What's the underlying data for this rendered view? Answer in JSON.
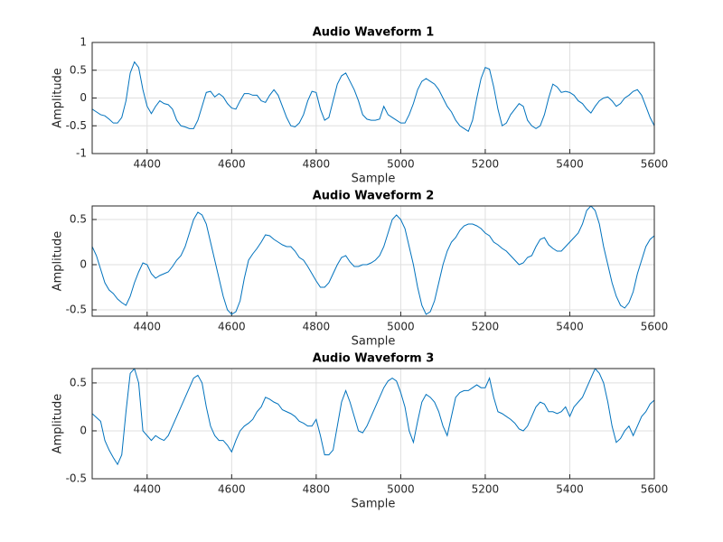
{
  "chart_data": [
    {
      "type": "line",
      "title": "Audio Waveform 1",
      "xlabel": "Sample",
      "ylabel": "Amplitude",
      "color": "#0072bd",
      "grid": true,
      "xlim": [
        4270,
        5600
      ],
      "ylim": [
        -1,
        1
      ],
      "xticks": [
        4400,
        4600,
        4800,
        5000,
        5200,
        5400,
        5600
      ],
      "yticks": [
        -1,
        -0.5,
        0,
        0.5,
        1
      ],
      "x": [
        4270,
        4280,
        4290,
        4300,
        4310,
        4320,
        4330,
        4340,
        4350,
        4360,
        4370,
        4380,
        4390,
        4400,
        4410,
        4420,
        4430,
        4440,
        4450,
        4460,
        4470,
        4480,
        4490,
        4500,
        4510,
        4520,
        4530,
        4540,
        4550,
        4560,
        4570,
        4580,
        4590,
        4600,
        4610,
        4620,
        4630,
        4640,
        4650,
        4660,
        4670,
        4680,
        4690,
        4700,
        4710,
        4720,
        4730,
        4740,
        4750,
        4760,
        4770,
        4780,
        4790,
        4800,
        4810,
        4820,
        4830,
        4840,
        4850,
        4860,
        4870,
        4880,
        4890,
        4900,
        4910,
        4920,
        4930,
        4940,
        4950,
        4960,
        4970,
        4980,
        4990,
        5000,
        5010,
        5020,
        5030,
        5040,
        5050,
        5060,
        5070,
        5080,
        5090,
        5100,
        5110,
        5120,
        5130,
        5140,
        5150,
        5160,
        5170,
        5180,
        5190,
        5200,
        5210,
        5220,
        5230,
        5240,
        5250,
        5260,
        5270,
        5280,
        5290,
        5300,
        5310,
        5320,
        5330,
        5340,
        5350,
        5360,
        5370,
        5380,
        5390,
        5400,
        5410,
        5420,
        5430,
        5440,
        5450,
        5460,
        5470,
        5480,
        5490,
        5500,
        5510,
        5520,
        5530,
        5540,
        5550,
        5560,
        5570,
        5580,
        5590,
        5600
      ],
      "values": [
        -0.2,
        -0.25,
        -0.3,
        -0.32,
        -0.38,
        -0.45,
        -0.45,
        -0.35,
        -0.05,
        0.45,
        0.65,
        0.55,
        0.15,
        -0.15,
        -0.28,
        -0.15,
        -0.05,
        -0.1,
        -0.12,
        -0.2,
        -0.4,
        -0.5,
        -0.52,
        -0.55,
        -0.55,
        -0.4,
        -0.15,
        0.1,
        0.12,
        0.02,
        0.08,
        0.02,
        -0.1,
        -0.18,
        -0.2,
        -0.05,
        0.08,
        0.08,
        0.05,
        0.05,
        -0.05,
        -0.08,
        0.05,
        0.15,
        0.05,
        -0.15,
        -0.35,
        -0.5,
        -0.52,
        -0.45,
        -0.3,
        -0.05,
        0.12,
        0.1,
        -0.2,
        -0.4,
        -0.35,
        -0.05,
        0.25,
        0.4,
        0.45,
        0.3,
        0.15,
        -0.05,
        -0.3,
        -0.38,
        -0.4,
        -0.4,
        -0.38,
        -0.15,
        -0.3,
        -0.35,
        -0.4,
        -0.45,
        -0.45,
        -0.3,
        -0.1,
        0.15,
        0.3,
        0.35,
        0.3,
        0.25,
        0.15,
        0,
        -0.15,
        -0.25,
        -0.4,
        -0.5,
        -0.55,
        -0.6,
        -0.4,
        0,
        0.35,
        0.55,
        0.52,
        0.2,
        -0.2,
        -0.5,
        -0.45,
        -0.3,
        -0.2,
        -0.1,
        -0.15,
        -0.4,
        -0.5,
        -0.55,
        -0.5,
        -0.3,
        0,
        0.25,
        0.2,
        0.1,
        0.12,
        0.1,
        0.05,
        -0.05,
        -0.1,
        -0.2,
        -0.27,
        -0.15,
        -0.05,
        0,
        0.02,
        -0.05,
        -0.15,
        -0.1,
        0,
        0.05,
        0.12,
        0.15,
        0.05,
        -0.15,
        -0.35,
        -0.5
      ]
    },
    {
      "type": "line",
      "title": "Audio Waveform 2",
      "xlabel": "Sample",
      "ylabel": "Amplitude",
      "color": "#0072bd",
      "grid": true,
      "xlim": [
        4270,
        5600
      ],
      "ylim": [
        -0.57,
        0.65
      ],
      "xticks": [
        4400,
        4600,
        4800,
        5000,
        5200,
        5400,
        5600
      ],
      "yticks": [
        -0.5,
        0,
        0.5
      ],
      "x": [
        4270,
        4280,
        4290,
        4300,
        4310,
        4320,
        4330,
        4340,
        4350,
        4360,
        4370,
        4380,
        4390,
        4400,
        4410,
        4420,
        4430,
        4440,
        4450,
        4460,
        4470,
        4480,
        4490,
        4500,
        4510,
        4520,
        4530,
        4540,
        4550,
        4560,
        4570,
        4580,
        4590,
        4600,
        4610,
        4620,
        4630,
        4640,
        4650,
        4660,
        4670,
        4680,
        4690,
        4700,
        4710,
        4720,
        4730,
        4740,
        4750,
        4760,
        4770,
        4780,
        4790,
        4800,
        4810,
        4820,
        4830,
        4840,
        4850,
        4860,
        4870,
        4880,
        4890,
        4900,
        4910,
        4920,
        4930,
        4940,
        4950,
        4960,
        4970,
        4980,
        4990,
        5000,
        5010,
        5020,
        5030,
        5040,
        5050,
        5060,
        5070,
        5080,
        5090,
        5100,
        5110,
        5120,
        5130,
        5140,
        5150,
        5160,
        5170,
        5180,
        5190,
        5200,
        5210,
        5220,
        5230,
        5240,
        5250,
        5260,
        5270,
        5280,
        5290,
        5300,
        5310,
        5320,
        5330,
        5340,
        5350,
        5360,
        5370,
        5380,
        5390,
        5400,
        5410,
        5420,
        5430,
        5440,
        5450,
        5460,
        5470,
        5480,
        5490,
        5500,
        5510,
        5520,
        5530,
        5540,
        5550,
        5560,
        5570,
        5580,
        5590,
        5600
      ],
      "values": [
        0.2,
        0.1,
        -0.05,
        -0.2,
        -0.28,
        -0.32,
        -0.38,
        -0.42,
        -0.45,
        -0.35,
        -0.2,
        -0.08,
        0.02,
        0,
        -0.1,
        -0.15,
        -0.12,
        -0.1,
        -0.08,
        -0.02,
        0.05,
        0.1,
        0.2,
        0.35,
        0.5,
        0.58,
        0.55,
        0.45,
        0.25,
        0.05,
        -0.15,
        -0.35,
        -0.5,
        -0.55,
        -0.52,
        -0.4,
        -0.15,
        0.05,
        0.12,
        0.18,
        0.25,
        0.33,
        0.32,
        0.28,
        0.25,
        0.22,
        0.2,
        0.2,
        0.15,
        0.08,
        0.05,
        -0.02,
        -0.1,
        -0.18,
        -0.25,
        -0.25,
        -0.2,
        -0.1,
        0,
        0.08,
        0.1,
        0.03,
        -0.02,
        -0.02,
        0,
        0,
        0.02,
        0.05,
        0.1,
        0.2,
        0.35,
        0.5,
        0.55,
        0.5,
        0.4,
        0.2,
        0,
        -0.25,
        -0.45,
        -0.55,
        -0.52,
        -0.4,
        -0.2,
        0,
        0.15,
        0.25,
        0.3,
        0.38,
        0.43,
        0.45,
        0.45,
        0.43,
        0.4,
        0.35,
        0.32,
        0.25,
        0.22,
        0.18,
        0.15,
        0.1,
        0.05,
        0,
        0.02,
        0.08,
        0.1,
        0.2,
        0.28,
        0.3,
        0.22,
        0.18,
        0.15,
        0.15,
        0.2,
        0.25,
        0.3,
        0.35,
        0.45,
        0.6,
        0.65,
        0.6,
        0.45,
        0.2,
        0,
        -0.2,
        -0.35,
        -0.45,
        -0.48,
        -0.42,
        -0.3,
        -0.1,
        0.05,
        0.2,
        0.28,
        0.32
      ]
    },
    {
      "type": "line",
      "title": "Audio Waveform 3",
      "xlabel": "Sample",
      "ylabel": "Amplitude",
      "color": "#0072bd",
      "grid": true,
      "xlim": [
        4270,
        5600
      ],
      "ylim": [
        -0.5,
        0.65
      ],
      "xticks": [
        4400,
        4600,
        4800,
        5000,
        5200,
        5400,
        5600
      ],
      "yticks": [
        -0.5,
        0,
        0.5
      ],
      "x": [
        4270,
        4280,
        4290,
        4300,
        4310,
        4320,
        4330,
        4340,
        4350,
        4360,
        4370,
        4380,
        4390,
        4400,
        4410,
        4420,
        4430,
        4440,
        4450,
        4460,
        4470,
        4480,
        4490,
        4500,
        4510,
        4520,
        4530,
        4540,
        4550,
        4560,
        4570,
        4580,
        4590,
        4600,
        4610,
        4620,
        4630,
        4640,
        4650,
        4660,
        4670,
        4680,
        4690,
        4700,
        4710,
        4720,
        4730,
        4740,
        4750,
        4760,
        4770,
        4780,
        4790,
        4800,
        4810,
        4820,
        4830,
        4840,
        4850,
        4860,
        4870,
        4880,
        4890,
        4900,
        4910,
        4920,
        4930,
        4940,
        4950,
        4960,
        4970,
        4980,
        4990,
        5000,
        5010,
        5020,
        5030,
        5040,
        5050,
        5060,
        5070,
        5080,
        5090,
        5100,
        5110,
        5120,
        5130,
        5140,
        5150,
        5160,
        5170,
        5180,
        5190,
        5200,
        5210,
        5220,
        5230,
        5240,
        5250,
        5260,
        5270,
        5280,
        5290,
        5300,
        5310,
        5320,
        5330,
        5340,
        5350,
        5360,
        5370,
        5380,
        5390,
        5400,
        5410,
        5420,
        5430,
        5440,
        5450,
        5460,
        5470,
        5480,
        5490,
        5500,
        5510,
        5520,
        5530,
        5540,
        5550,
        5560,
        5570,
        5580,
        5590,
        5600
      ],
      "values": [
        0.18,
        0.14,
        0.1,
        -0.1,
        -0.2,
        -0.28,
        -0.35,
        -0.25,
        0.2,
        0.6,
        0.65,
        0.5,
        0,
        -0.05,
        -0.1,
        -0.05,
        -0.08,
        -0.1,
        -0.05,
        0.05,
        0.15,
        0.25,
        0.35,
        0.45,
        0.55,
        0.58,
        0.5,
        0.25,
        0.05,
        -0.05,
        -0.1,
        -0.1,
        -0.15,
        -0.22,
        -0.1,
        0,
        0.05,
        0.08,
        0.12,
        0.2,
        0.25,
        0.35,
        0.33,
        0.3,
        0.28,
        0.22,
        0.2,
        0.18,
        0.15,
        0.1,
        0.08,
        0.05,
        0.05,
        0.12,
        -0.05,
        -0.25,
        -0.25,
        -0.2,
        0.05,
        0.3,
        0.42,
        0.3,
        0.15,
        0,
        -0.02,
        0.05,
        0.15,
        0.25,
        0.35,
        0.45,
        0.52,
        0.55,
        0.52,
        0.4,
        0.25,
        0,
        -0.12,
        0.1,
        0.3,
        0.38,
        0.35,
        0.3,
        0.2,
        0.05,
        -0.05,
        0.15,
        0.35,
        0.4,
        0.42,
        0.42,
        0.45,
        0.48,
        0.45,
        0.45,
        0.55,
        0.35,
        0.2,
        0.18,
        0.15,
        0.12,
        0.08,
        0.02,
        0,
        0.05,
        0.15,
        0.25,
        0.3,
        0.28,
        0.2,
        0.2,
        0.18,
        0.2,
        0.25,
        0.15,
        0.25,
        0.3,
        0.35,
        0.45,
        0.55,
        0.65,
        0.6,
        0.5,
        0.3,
        0.05,
        -0.12,
        -0.08,
        0,
        0.05,
        -0.05,
        0.05,
        0.15,
        0.2,
        0.28,
        0.32
      ]
    }
  ]
}
